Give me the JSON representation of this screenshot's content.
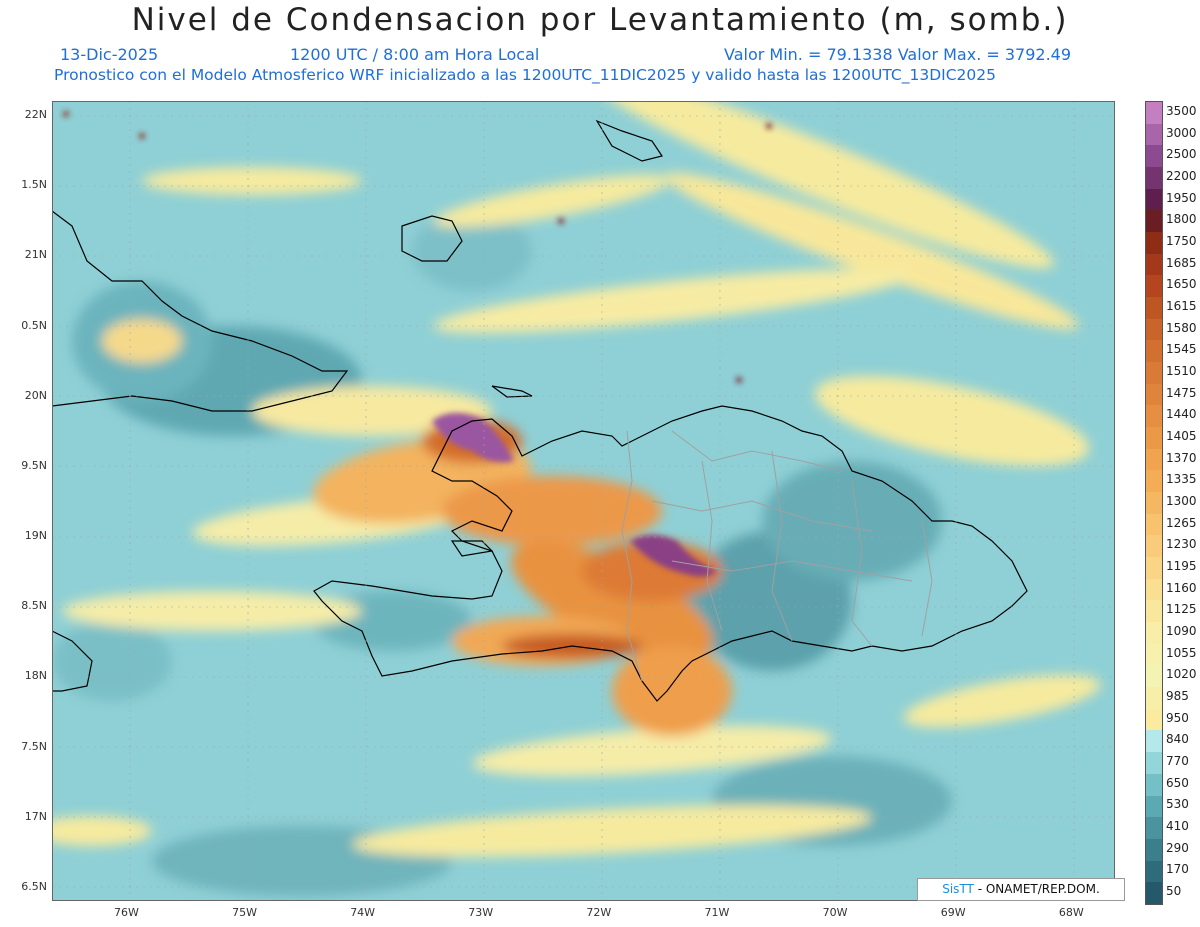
{
  "title": "Nivel de Condensacion por Levantamiento (m, somb.)",
  "subtitle": {
    "date": "13-Dic-2025",
    "time": "1200 UTC / 8:00 am Hora Local",
    "min_max": "Valor Min. = 79.1338   Valor Max. = 3792.49",
    "model_line": "Pronostico con el Modelo Atmosferico WRF inicializado a las 1200UTC_11DIC2025 y valido hasta las  1200UTC_13DIC2025"
  },
  "axes": {
    "lat_labels": [
      "22N",
      "1.5N",
      "21N",
      "0.5N",
      "20N",
      "9.5N",
      "19N",
      "8.5N",
      "18N",
      "7.5N",
      "17N",
      "6.5N"
    ],
    "lat_values": [
      22,
      21.5,
      21,
      20.5,
      20,
      19.5,
      19,
      18.5,
      18,
      17.5,
      17,
      16.5
    ],
    "lon_labels": [
      "76W",
      "75W",
      "74W",
      "73W",
      "72W",
      "71W",
      "70W",
      "69W",
      "68W"
    ],
    "lon_values": [
      -76,
      -75,
      -74,
      -73,
      -72,
      -71,
      -70,
      -69,
      -68
    ],
    "extent": {
      "lon_min": -76.63,
      "lon_max": -67.63,
      "lat_min": 16.4,
      "lat_max": 22.1
    }
  },
  "colorbar": {
    "labels": [
      "3500",
      "3000",
      "2500",
      "2200",
      "1950",
      "1800",
      "1750",
      "1685",
      "1650",
      "1615",
      "1580",
      "1545",
      "1510",
      "1475",
      "1440",
      "1405",
      "1370",
      "1335",
      "1300",
      "1265",
      "1230",
      "1195",
      "1160",
      "1125",
      "1090",
      "1055",
      "1020",
      "985",
      "950",
      "840",
      "770",
      "650",
      "530",
      "410",
      "290",
      "170",
      "50"
    ],
    "colors": [
      "#c37fbf",
      "#a964aa",
      "#8c4b90",
      "#74346f",
      "#5e1f4f",
      "#6b1d24",
      "#8f2d14",
      "#a3381a",
      "#b5451f",
      "#be5624",
      "#c9642b",
      "#d27032",
      "#da7a37",
      "#e0843c",
      "#e68e42",
      "#ec9947",
      "#f1a34f",
      "#f4ad56",
      "#f6b763",
      "#f8c26f",
      "#f9cb7b",
      "#fad586",
      "#fadf92",
      "#f9e79d",
      "#f8eea7",
      "#f6f2ae",
      "#f3f4b4",
      "#f7efa7",
      "#fbeb9e",
      "#b4e8ea",
      "#92d6da",
      "#74c0c7",
      "#5ba9b2",
      "#4a939f",
      "#3b7e8c",
      "#2f6c7b",
      "#24586a"
    ]
  },
  "credit": {
    "logo": "SisTT",
    "text": "- ONAMET/REP.DOM."
  },
  "colors": {
    "ocean": "#8dcfd5",
    "highland_warm": "#f6c25d",
    "peak": "#8d4a8e",
    "title_blue": "#1e6fd9"
  }
}
